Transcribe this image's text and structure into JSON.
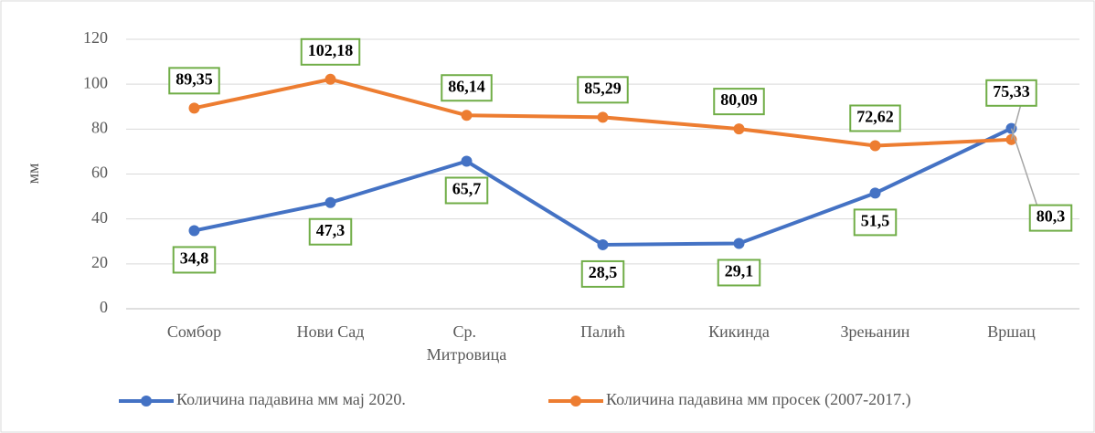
{
  "chart_data": {
    "type": "line",
    "y_label": "мм",
    "categories": [
      "Сомбор",
      "Нови Сад",
      "Ср. Митровица",
      "Палић",
      "Кикинда",
      "Зрењанин",
      "Вршац"
    ],
    "series": [
      {
        "name": "Количина падавина мм мај 2020.",
        "color": "#4472c4",
        "values": [
          34.8,
          47.3,
          65.7,
          28.5,
          29.1,
          51.5,
          80.3
        ],
        "value_labels": [
          "34,8",
          "47,3",
          "65,7",
          "28,5",
          "29,1",
          "51,5",
          "80,3"
        ]
      },
      {
        "name": "Количина падавина мм просек (2007-2017.)",
        "color": "#ed7d31",
        "values": [
          89.35,
          102.18,
          86.14,
          85.29,
          80.09,
          72.62,
          75.33
        ],
        "value_labels": [
          "89,35",
          "102,18",
          "86,14",
          "85,29",
          "80,09",
          "72,62",
          "75,33"
        ]
      }
    ],
    "ylim": [
      0,
      120
    ],
    "yticks": [
      0,
      20,
      40,
      60,
      80,
      100,
      120
    ],
    "grid": true,
    "legend": "bottom"
  }
}
